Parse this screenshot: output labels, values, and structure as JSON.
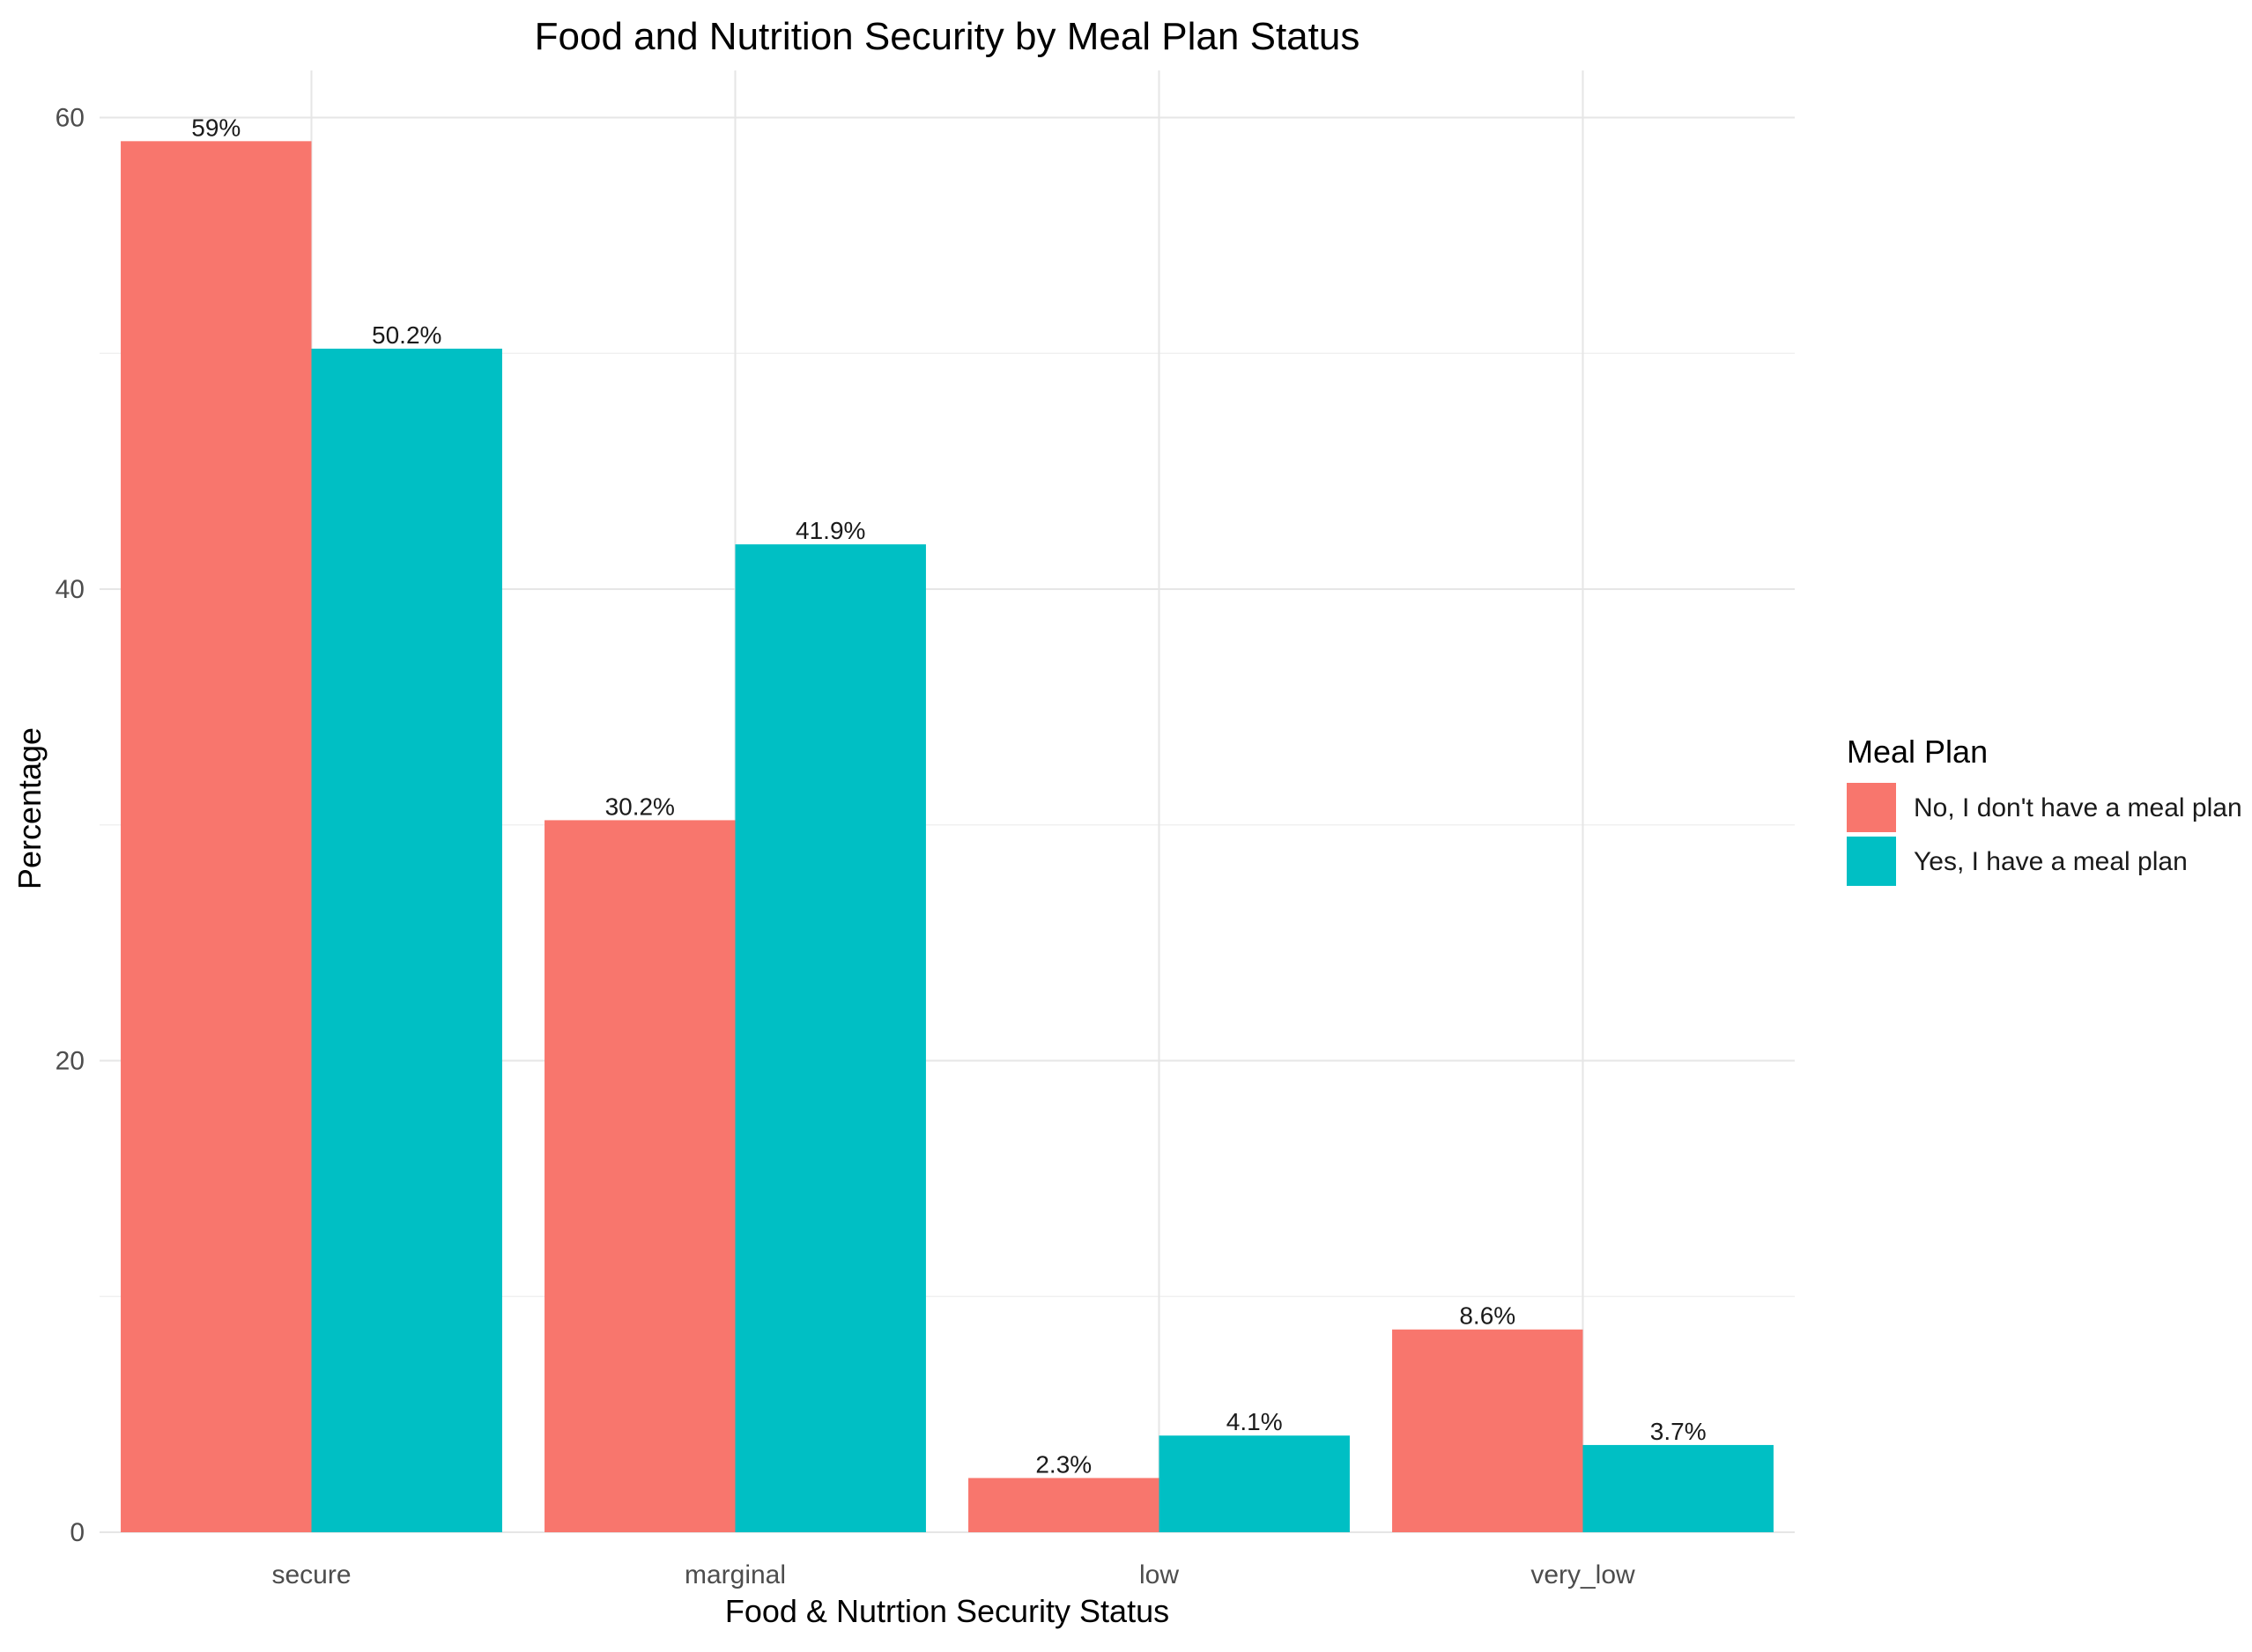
{
  "chart_data": {
    "type": "bar",
    "title": "Food and Nutrition Security by Meal Plan Status",
    "xlabel": "Food & Nutrtion Security Status",
    "ylabel": "Percentage",
    "categories": [
      "secure",
      "marginal",
      "low",
      "very_low"
    ],
    "series": [
      {
        "name": "No, I don't have a meal plan",
        "color": "#F8766D",
        "values": [
          59.0,
          30.2,
          2.3,
          8.6
        ],
        "labels": [
          "59%",
          "30.2%",
          "2.3%",
          "8.6%"
        ]
      },
      {
        "name": "Yes, I have a meal plan",
        "color": "#00BFC4",
        "values": [
          50.2,
          41.9,
          4.1,
          3.7
        ],
        "labels": [
          "50.2%",
          "41.9%",
          "4.1%",
          "3.7%"
        ]
      }
    ],
    "ylim": [
      0,
      62
    ],
    "yticks": [
      0,
      20,
      40,
      60
    ],
    "ytick_labels": [
      "0",
      "20",
      "40",
      "60"
    ],
    "grid": true,
    "legend": {
      "title": "Meal Plan",
      "position": "right"
    }
  }
}
